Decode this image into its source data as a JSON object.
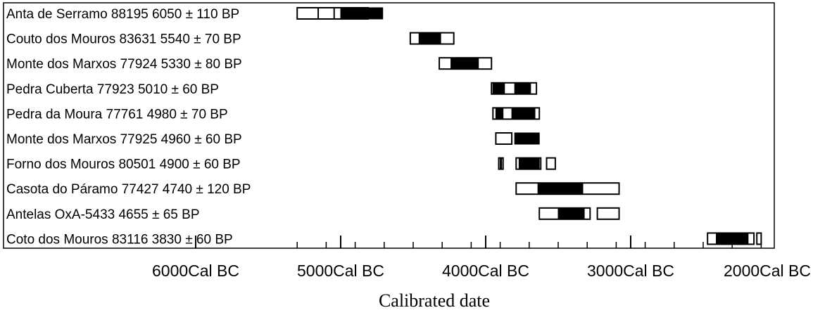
{
  "chart_data": {
    "type": "range",
    "xlabel": "Calibrated date",
    "x_ticks": [
      {
        "value": 6000,
        "label": "6000Cal BC"
      },
      {
        "value": 5000,
        "label": "5000Cal BC"
      },
      {
        "value": 4000,
        "label": "4000Cal BC"
      },
      {
        "value": 3000,
        "label": "3000Cal BC"
      },
      {
        "value": 2000,
        "label": "2000Cal BC"
      }
    ],
    "x_unit": "Cal BC",
    "colors": {
      "sigma1": "#000000",
      "sigma2": "#ffffff",
      "outline": "#000000"
    },
    "series": [
      {
        "label": "Anta de Serramo 88195   6050 ± 110 BP",
        "white": [
          [
            5300,
            4810
          ],
          [
            5155,
            5045
          ]
        ],
        "black": [
          [
            5000,
            4710
          ]
        ]
      },
      {
        "label": "Couto dos Mouros 83631   5540 ± 70 BP",
        "white": [
          [
            4520,
            4220
          ]
        ],
        "black": [
          [
            4460,
            4310
          ]
        ]
      },
      {
        "label": "Monte dos Marxos 77924   5330 ± 80 BP",
        "white": [
          [
            4320,
            3960
          ]
        ],
        "black": [
          [
            4240,
            4050
          ]
        ]
      },
      {
        "label": "Pedra Cuberta 77923   5010 ± 60 BP",
        "white": [
          [
            3960,
            3650
          ]
        ],
        "black": [
          [
            3950,
            3870
          ],
          [
            3800,
            3690
          ]
        ]
      },
      {
        "label": "Pedra da Moura 77761   4980 ± 70 BP",
        "white": [
          [
            3950,
            3630
          ]
        ],
        "black": [
          [
            3930,
            3880
          ],
          [
            3820,
            3660
          ]
        ]
      },
      {
        "label": "Monte dos Marxos 77925   4960 ± 60 BP",
        "white": [
          [
            3930,
            3820
          ]
        ],
        "black": [
          [
            3800,
            3630
          ]
        ]
      },
      {
        "label": "Forno dos Mouros 80501   4900 ± 60 BP",
        "white": [
          [
            3910,
            3880
          ],
          [
            3790,
            3620
          ],
          [
            3580,
            3520
          ]
        ],
        "black": [
          [
            3900,
            3890
          ],
          [
            3770,
            3630
          ]
        ]
      },
      {
        "label": "Casota do Páramo 77427   4740 ± 120 BP",
        "white": [
          [
            3790,
            3080
          ]
        ],
        "black": [
          [
            3640,
            3330
          ]
        ]
      },
      {
        "label": "Antelas OxA-5433   4655 ± 65 BP",
        "white": [
          [
            3630,
            3280
          ],
          [
            3230,
            3080
          ]
        ],
        "black": [
          [
            3500,
            3320
          ]
        ]
      },
      {
        "label": "Coto dos Mouros 83116   3830 ± 60 BP",
        "white": [
          [
            2470,
            2150
          ],
          [
            2130,
            2100
          ]
        ],
        "black": [
          [
            2410,
            2190
          ]
        ]
      }
    ]
  }
}
